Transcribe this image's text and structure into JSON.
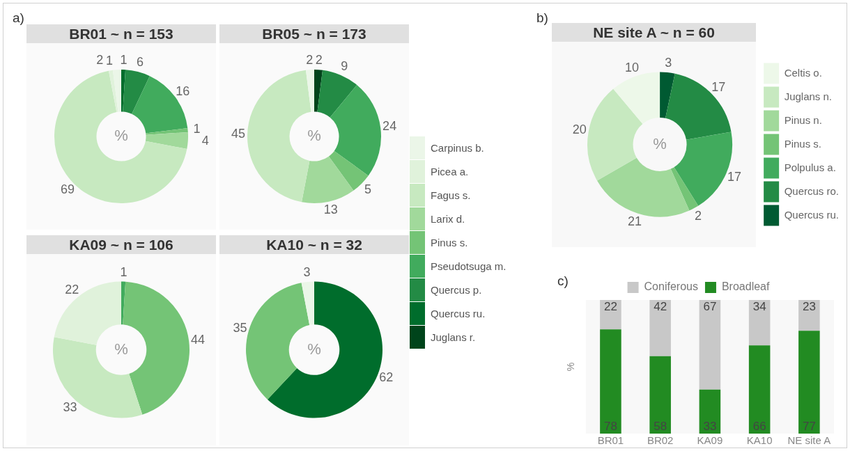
{
  "chart_data": [
    {
      "type": "donut",
      "title": "BR01 ~ n = 153",
      "ylabel": "%",
      "annotations": [
        "a)"
      ],
      "legend": "right",
      "data_labels": true,
      "categories": [
        "Juglans r.",
        "Quercus ru.",
        "Quercus p.",
        "Pseudotsuga m.",
        "Pinus s.",
        "Larix d.",
        "Fagus s.",
        "Picea a.",
        "Carpinus b."
      ],
      "values": [
        null,
        1,
        6,
        16,
        1,
        4,
        69,
        1,
        2
      ],
      "colors": [
        "#00441b",
        "#006d2c",
        "#238b45",
        "#41ab5d",
        "#74c476",
        "#a1d99b",
        "#c7e9c0",
        "#e0f2db",
        "#ebf6e8"
      ]
    },
    {
      "type": "donut",
      "title": "BR05 ~ n = 173",
      "ylabel": "%",
      "data_labels": true,
      "categories": [
        null,
        null,
        null,
        null,
        null,
        null,
        null,
        null,
        null
      ],
      "values": [
        2,
        null,
        9,
        24,
        5,
        13,
        45,
        null,
        2
      ],
      "colors": [
        "#00441b",
        "#006d2c",
        "#238b45",
        "#41ab5d",
        "#74c476",
        "#a1d99b",
        "#c7e9c0",
        "#e0f2db",
        "#ebf6e8"
      ]
    },
    {
      "type": "donut",
      "title": "KA09 ~ n = 106",
      "ylabel": "%",
      "data_labels": true,
      "categories": [
        null,
        null,
        null,
        null,
        null,
        null,
        null,
        null,
        null
      ],
      "values": [
        null,
        null,
        null,
        1,
        44,
        null,
        33,
        22,
        null
      ],
      "colors": [
        "#00441b",
        "#006d2c",
        "#238b45",
        "#41ab5d",
        "#74c476",
        "#a1d99b",
        "#c7e9c0",
        "#e0f2db",
        "#ebf6e8"
      ]
    },
    {
      "type": "donut",
      "title": "KA10 ~ n = 32",
      "ylabel": "%",
      "data_labels": true,
      "categories": [
        null,
        null,
        null,
        null,
        null,
        null,
        null,
        null,
        null
      ],
      "values": [
        null,
        62,
        null,
        null,
        35,
        null,
        null,
        null,
        3
      ],
      "colors": [
        "#00441b",
        "#006d2c",
        "#238b45",
        "#41ab5d",
        "#74c476",
        "#a1d99b",
        "#c7e9c0",
        "#e0f2db",
        "#ebf6e8"
      ]
    },
    {
      "type": "donut",
      "title": "NE site A ~ n = 60",
      "ylabel": "%",
      "annotations": [
        "b)"
      ],
      "legend": "right",
      "data_labels": true,
      "categories": [
        "Quercus ru.",
        "Quercus ro.",
        "Polpulus a.",
        "Pinus s.",
        "Pinus n.",
        "Juglans n.",
        "Celtis o."
      ],
      "values": [
        3,
        17,
        17,
        2,
        21,
        20,
        10
      ],
      "colors": [
        "#005a32",
        "#238b45",
        "#41ab5d",
        "#74c476",
        "#a1d99b",
        "#c7e9c0",
        "#edf8e9"
      ]
    },
    {
      "type": "bar",
      "stacked": true,
      "ylabel": "%",
      "annotations": [
        "c)"
      ],
      "legend": "top",
      "tick_labels": "x",
      "grid": false,
      "data_labels": true,
      "categories": [
        "BR01",
        "BR02",
        "KA09",
        "KA10",
        "NE site A"
      ],
      "ylim": [
        0,
        100
      ],
      "series": [
        {
          "name": "Broadleaf",
          "color": "#228b22",
          "values": [
            78,
            58,
            33,
            66,
            77
          ]
        },
        {
          "name": "Coniferous",
          "color": "#c8c8c8",
          "values": [
            22,
            42,
            67,
            34,
            23
          ]
        }
      ]
    }
  ]
}
